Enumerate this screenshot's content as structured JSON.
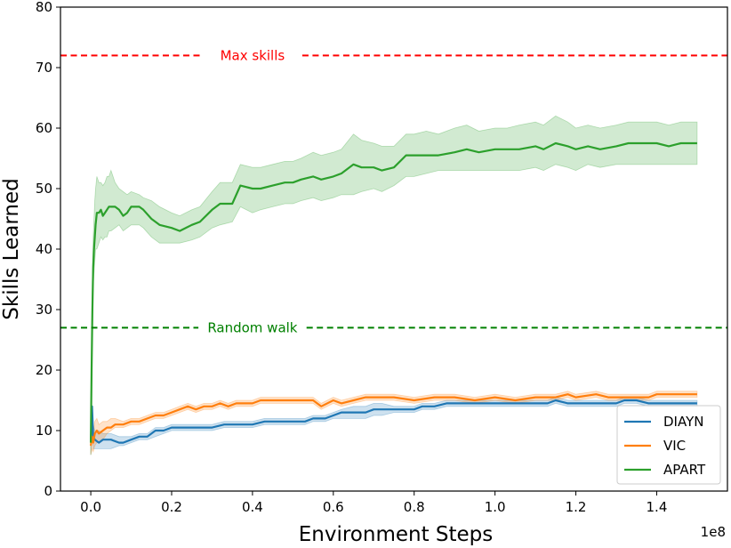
{
  "chart_data": {
    "type": "line",
    "title": "",
    "xlabel": "Environment Steps",
    "ylabel": "Skills Learned",
    "x_offset_label": "1e8",
    "xlim": [
      -0.075,
      1.575
    ],
    "ylim": [
      0,
      80
    ],
    "xticks": [
      0.0,
      0.2,
      0.4,
      0.6,
      0.8,
      1.0,
      1.2,
      1.4
    ],
    "xtick_labels": [
      "0.0",
      "0.2",
      "0.4",
      "0.6",
      "0.8",
      "1.0",
      "1.2",
      "1.4"
    ],
    "yticks": [
      0,
      10,
      20,
      30,
      40,
      50,
      60,
      70,
      80
    ],
    "ytick_labels": [
      "0",
      "10",
      "20",
      "30",
      "40",
      "50",
      "60",
      "70",
      "80"
    ],
    "grid": false,
    "legend_position": "lower-right",
    "reference_lines": [
      {
        "name": "Max skills",
        "y": 72,
        "color": "#ff0000",
        "style": "dashed",
        "label_x": 0.4
      },
      {
        "name": "Random walk",
        "y": 27,
        "color": "#008000",
        "style": "dashed",
        "label_x": 0.4
      }
    ],
    "series": [
      {
        "name": "DIAYN",
        "color": "#1f77b4",
        "x": [
          0,
          0.003,
          0.006,
          0.01,
          0.02,
          0.03,
          0.05,
          0.07,
          0.08,
          0.1,
          0.12,
          0.14,
          0.16,
          0.18,
          0.2,
          0.22,
          0.25,
          0.28,
          0.3,
          0.33,
          0.36,
          0.38,
          0.4,
          0.43,
          0.46,
          0.5,
          0.53,
          0.55,
          0.58,
          0.6,
          0.62,
          0.65,
          0.68,
          0.7,
          0.72,
          0.75,
          0.78,
          0.8,
          0.82,
          0.85,
          0.88,
          0.9,
          0.95,
          1.0,
          1.05,
          1.1,
          1.13,
          1.15,
          1.18,
          1.2,
          1.25,
          1.28,
          1.3,
          1.32,
          1.35,
          1.38,
          1.4,
          1.45,
          1.5
        ],
        "values": [
          8,
          14,
          9,
          8.5,
          8,
          8.5,
          8.5,
          8,
          8,
          8.5,
          9,
          9,
          10,
          10,
          10.5,
          10.5,
          10.5,
          10.5,
          10.5,
          11,
          11,
          11,
          11,
          11.5,
          11.5,
          11.5,
          11.5,
          12,
          12,
          12.5,
          13,
          13,
          13,
          13.5,
          13.5,
          13.5,
          13.5,
          13.5,
          14,
          14,
          14.5,
          14.5,
          14.5,
          14.5,
          14.5,
          14.5,
          14.5,
          15,
          14.5,
          14.5,
          14.5,
          14.5,
          14.5,
          15,
          15,
          14.5,
          14.5,
          14.5,
          14.5
        ],
        "lower": [
          6,
          10,
          7,
          7,
          7,
          7,
          7,
          7.5,
          7.5,
          8,
          8.5,
          8.5,
          9,
          9.5,
          10,
          10,
          10,
          10,
          10,
          10.5,
          10.5,
          10.5,
          10.5,
          11,
          11,
          11,
          11,
          11.5,
          11.5,
          12,
          12,
          12,
          12,
          12.5,
          12.5,
          13,
          13,
          13,
          13.5,
          13.5,
          14,
          14,
          14,
          14,
          14,
          14,
          14,
          14.5,
          14,
          14,
          14,
          14,
          14,
          14.5,
          14.5,
          14,
          14,
          14,
          14
        ],
        "upper": [
          10,
          14,
          11,
          10,
          10,
          9.5,
          9.5,
          9,
          9,
          9,
          9.5,
          9.5,
          10.5,
          10.5,
          11,
          11,
          11,
          11,
          11,
          11.5,
          11.5,
          11.5,
          11.5,
          12,
          12,
          12,
          12,
          12.5,
          12.5,
          13,
          13.5,
          14,
          14,
          14.5,
          14.5,
          14,
          14,
          14,
          14.5,
          14.5,
          15,
          15,
          15,
          15,
          15,
          15,
          15,
          15.5,
          15,
          15,
          15,
          15,
          15,
          15.5,
          15.5,
          15,
          15,
          15,
          15
        ]
      },
      {
        "name": "VIC",
        "color": "#ff7f0e",
        "x": [
          0,
          0.003,
          0.006,
          0.01,
          0.015,
          0.02,
          0.03,
          0.04,
          0.05,
          0.06,
          0.08,
          0.1,
          0.12,
          0.14,
          0.16,
          0.18,
          0.2,
          0.22,
          0.24,
          0.26,
          0.28,
          0.3,
          0.32,
          0.34,
          0.36,
          0.38,
          0.4,
          0.42,
          0.45,
          0.5,
          0.55,
          0.57,
          0.6,
          0.62,
          0.65,
          0.68,
          0.7,
          0.75,
          0.8,
          0.85,
          0.9,
          0.95,
          1.0,
          1.05,
          1.1,
          1.15,
          1.18,
          1.2,
          1.25,
          1.28,
          1.3,
          1.35,
          1.38,
          1.4,
          1.45,
          1.5
        ],
        "values": [
          7.5,
          9,
          8,
          9.5,
          10,
          9.5,
          10,
          10.5,
          10.5,
          11,
          11,
          11.5,
          11.5,
          12,
          12.5,
          12.5,
          13,
          13.5,
          14,
          13.5,
          14,
          14,
          14.5,
          14,
          14.5,
          14.5,
          14.5,
          15,
          15,
          15,
          15,
          14,
          15,
          14.5,
          15,
          15.5,
          15.5,
          15.5,
          15,
          15.5,
          15.5,
          15,
          15.5,
          15,
          15.5,
          15.5,
          16,
          15.5,
          16,
          15.5,
          15.5,
          15.5,
          15.5,
          16,
          16,
          16
        ],
        "lower": [
          6,
          7,
          6.5,
          7.5,
          8,
          8,
          8.5,
          9.5,
          10,
          10.5,
          10.5,
          11,
          11,
          11.5,
          12,
          12,
          12.5,
          13,
          13.5,
          13,
          13.5,
          13.5,
          14,
          13.5,
          14,
          14,
          14,
          14.5,
          14.5,
          14.5,
          14.5,
          13.5,
          14.5,
          14,
          14.5,
          15,
          15,
          15,
          14.5,
          15,
          15,
          14.5,
          15,
          14.5,
          15,
          15,
          15.5,
          15,
          15.5,
          15,
          15,
          15,
          15,
          15.5,
          15.5,
          15.5
        ],
        "upper": [
          9,
          11,
          9.5,
          11.5,
          12,
          11,
          11.5,
          11.5,
          12,
          12,
          11.5,
          12,
          12,
          12.5,
          13,
          13,
          13.5,
          14,
          14.5,
          14,
          14.5,
          14.5,
          15,
          14.5,
          15,
          15,
          15,
          15.5,
          15.5,
          15.5,
          15.5,
          14.5,
          15.5,
          15,
          15.5,
          16,
          16,
          16,
          15.5,
          16,
          16,
          15.5,
          16,
          15.5,
          16,
          16,
          16.5,
          16,
          16.5,
          16,
          16,
          16,
          16,
          16.5,
          16.5,
          16.5
        ]
      },
      {
        "name": "APART",
        "color": "#2ca02c",
        "x": [
          0,
          0.002,
          0.004,
          0.006,
          0.008,
          0.01,
          0.012,
          0.015,
          0.02,
          0.025,
          0.03,
          0.035,
          0.04,
          0.045,
          0.05,
          0.06,
          0.07,
          0.08,
          0.09,
          0.1,
          0.12,
          0.13,
          0.15,
          0.17,
          0.2,
          0.22,
          0.25,
          0.27,
          0.3,
          0.32,
          0.35,
          0.37,
          0.4,
          0.42,
          0.45,
          0.48,
          0.5,
          0.52,
          0.55,
          0.57,
          0.6,
          0.62,
          0.65,
          0.67,
          0.7,
          0.72,
          0.75,
          0.78,
          0.8,
          0.83,
          0.86,
          0.9,
          0.93,
          0.96,
          1.0,
          1.03,
          1.06,
          1.1,
          1.12,
          1.15,
          1.18,
          1.2,
          1.23,
          1.26,
          1.3,
          1.33,
          1.37,
          1.4,
          1.43,
          1.46,
          1.5
        ],
        "values": [
          8,
          20,
          30,
          37,
          40,
          42,
          44,
          46,
          46,
          46.5,
          45.5,
          46,
          46.5,
          47,
          47,
          47,
          46.5,
          45.5,
          46,
          47,
          47,
          46.5,
          45,
          44,
          43.5,
          43,
          44,
          44.5,
          46.5,
          47.5,
          47.5,
          50.5,
          50,
          50,
          50.5,
          51,
          51,
          51.5,
          52,
          51.5,
          52,
          52.5,
          54,
          53.5,
          53.5,
          53,
          53.5,
          55.5,
          55.5,
          55.5,
          55.5,
          56,
          56.5,
          56,
          56.5,
          56.5,
          56.5,
          57,
          56.5,
          57.5,
          57,
          56.5,
          57,
          56.5,
          57,
          57.5,
          57.5,
          57.5,
          57,
          57.5,
          57.5
        ],
        "lower": [
          6,
          15,
          28,
          34,
          36,
          38,
          40,
          40,
          41,
          42,
          41.5,
          42,
          42,
          43,
          43,
          43.5,
          44,
          43,
          43.5,
          44,
          44,
          43.5,
          42,
          41,
          41,
          41,
          41.5,
          42,
          43.5,
          44,
          44.5,
          47,
          46,
          46.5,
          47,
          47.5,
          47.5,
          48,
          48.5,
          48,
          48.5,
          49,
          49,
          49.5,
          50,
          49.5,
          50.5,
          52,
          52,
          52.5,
          53,
          53,
          53,
          53,
          53,
          53,
          53,
          53.5,
          53,
          54,
          53.5,
          53,
          54,
          53.5,
          54,
          54,
          54,
          54,
          54,
          54,
          54
        ],
        "upper": [
          10,
          25,
          36,
          42,
          45,
          48,
          50,
          52,
          51,
          51,
          50.5,
          51,
          52,
          52,
          53,
          51,
          50,
          49.5,
          49,
          49.5,
          49,
          48.5,
          48,
          47,
          46,
          45.5,
          46.5,
          47,
          49.5,
          51,
          51,
          54,
          53.5,
          53.5,
          54,
          54.5,
          54.5,
          55,
          56,
          55.5,
          56,
          56.5,
          59,
          58,
          57.5,
          57,
          57,
          59,
          59,
          59.5,
          59,
          60,
          60.5,
          59.5,
          60,
          60,
          60.5,
          61,
          60.5,
          62,
          61,
          60,
          60.5,
          60,
          60.5,
          61,
          61,
          61,
          60.5,
          61,
          61
        ]
      }
    ]
  }
}
